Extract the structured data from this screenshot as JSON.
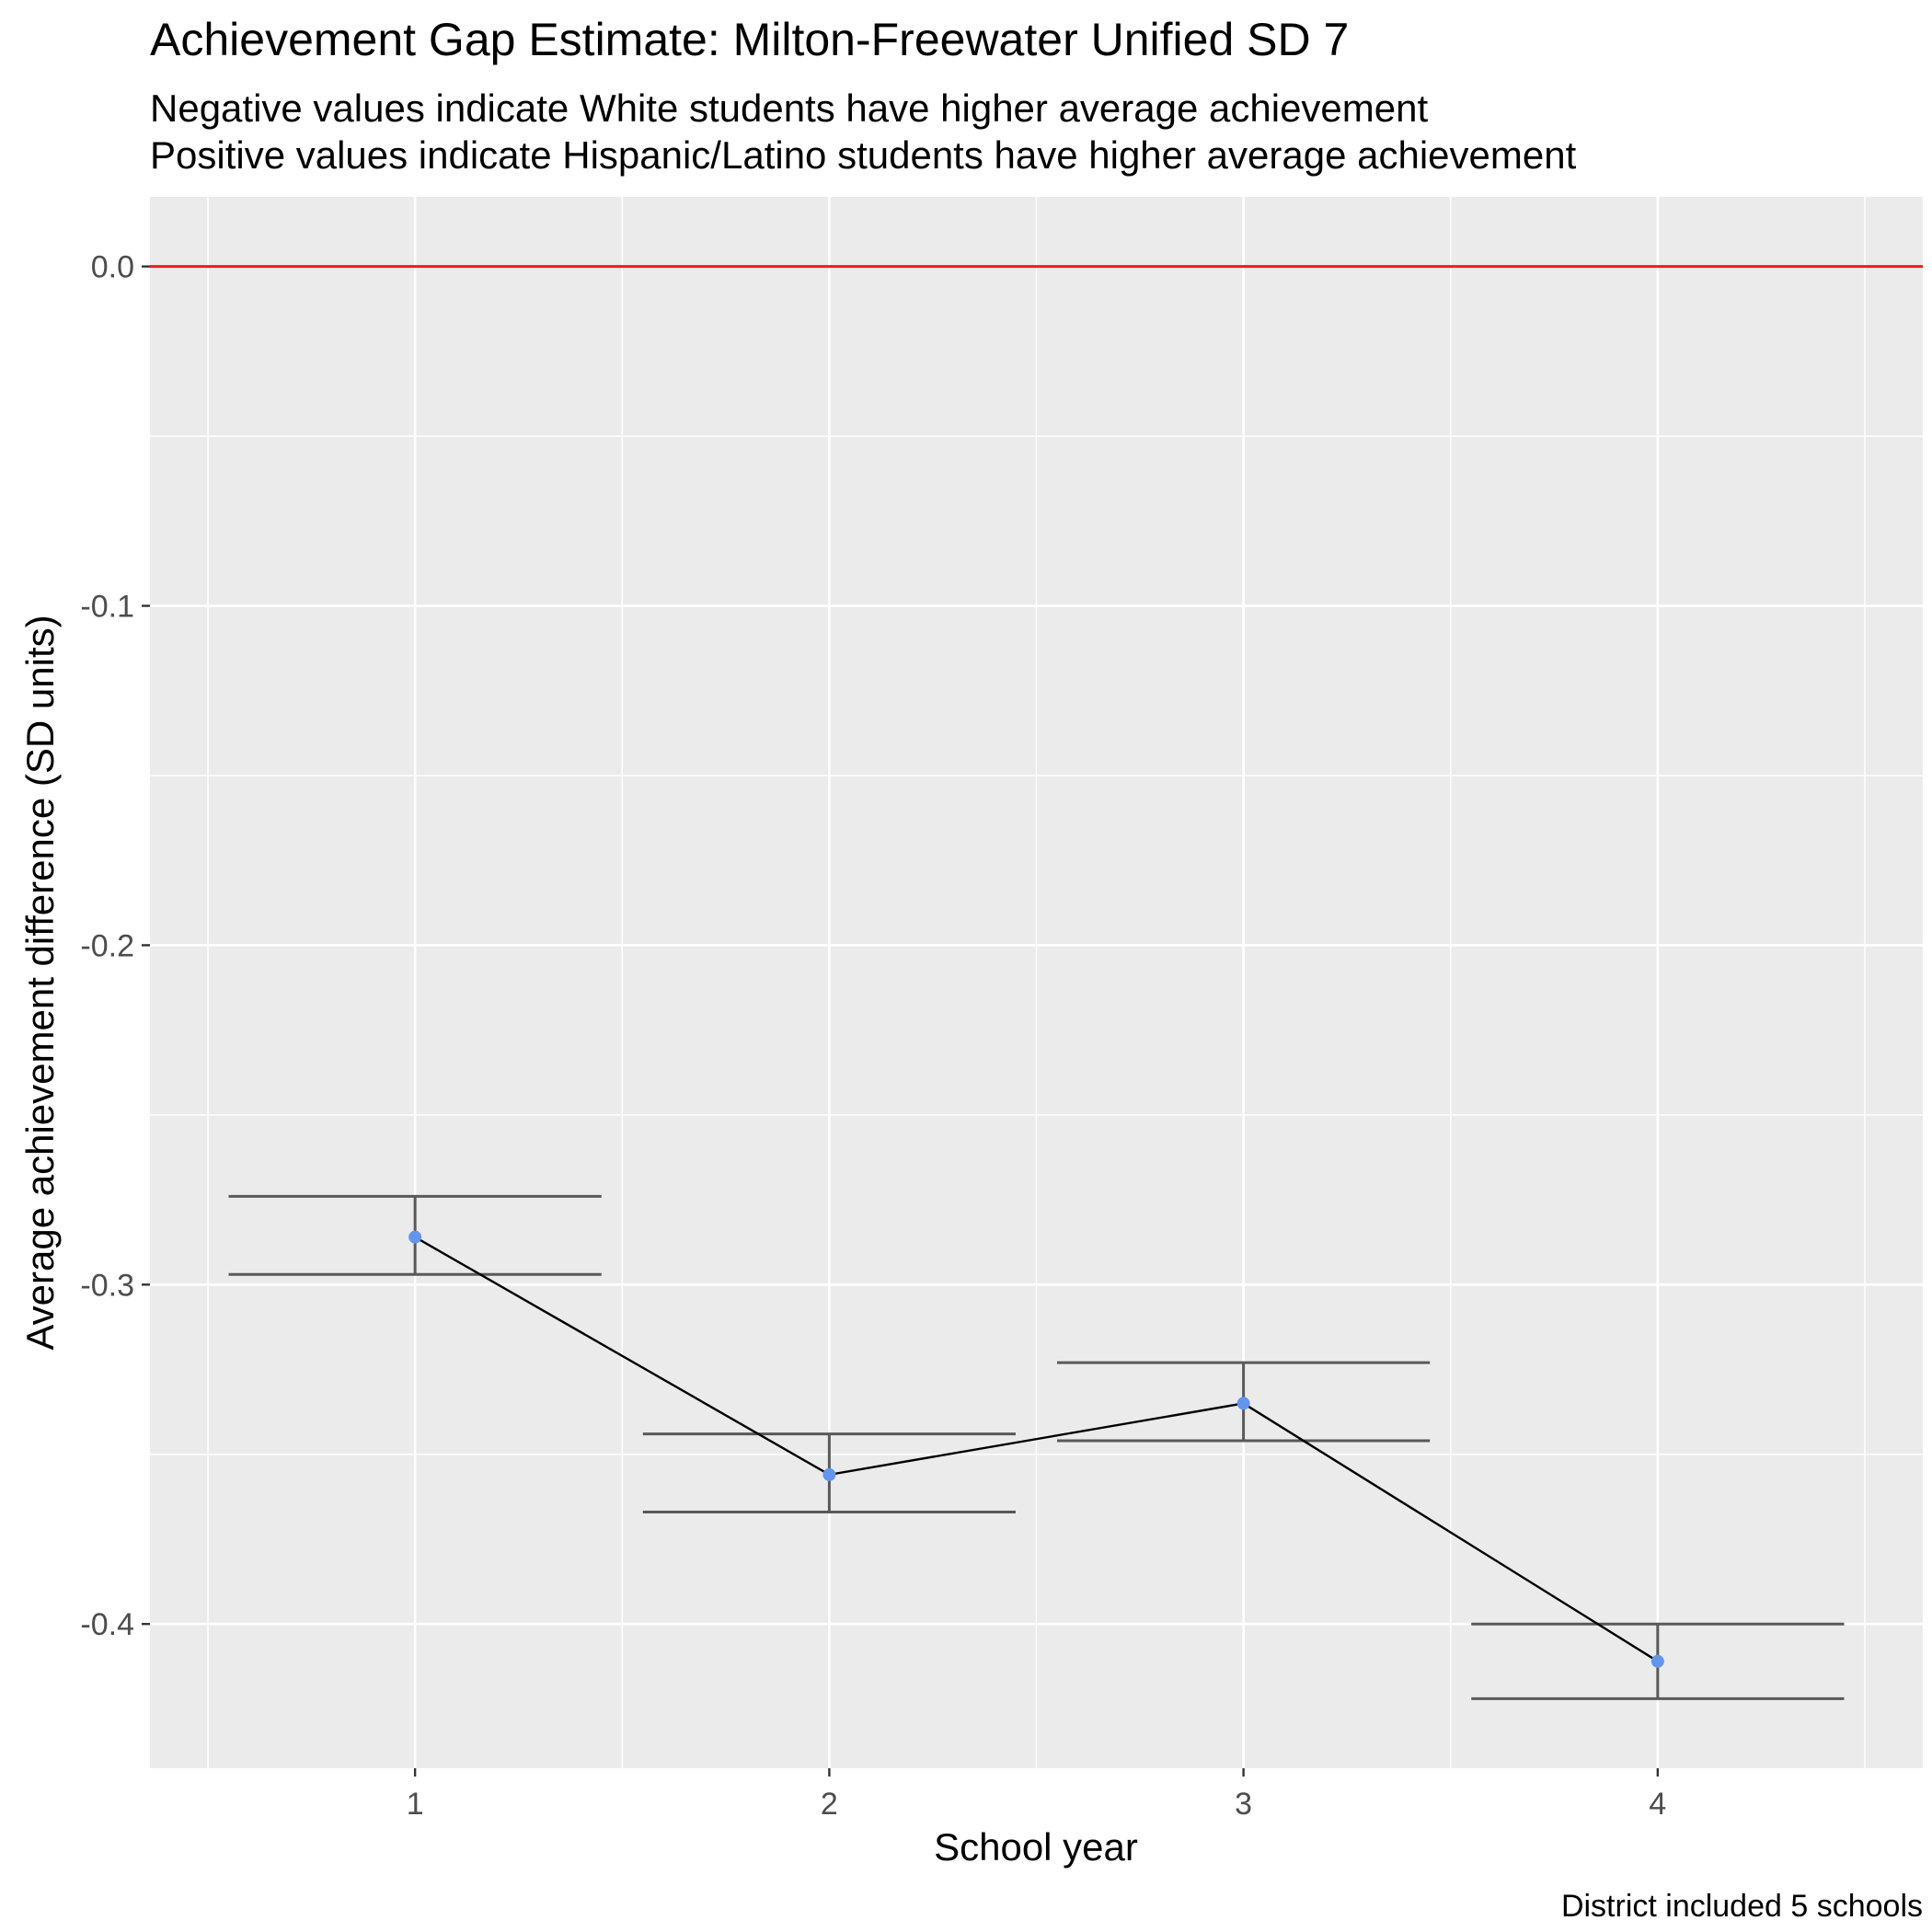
{
  "chart_data": {
    "type": "line",
    "title": "Achievement Gap Estimate: Milton-Freewater Unified SD 7",
    "subtitle_lines": [
      "Negative values indicate White students have higher average achievement",
      "Positive values indicate Hispanic/Latino students have higher average achievement"
    ],
    "xlabel": "School year",
    "ylabel": "Average achievement difference (SD units)",
    "caption": "District included 5 schools",
    "x": [
      1,
      2,
      3,
      4
    ],
    "x_tick_labels": [
      "1",
      "2",
      "3",
      "4"
    ],
    "series": [
      {
        "values": [
          -0.286,
          -0.356,
          -0.335,
          -0.411
        ],
        "error_lower": [
          -0.297,
          -0.367,
          -0.346,
          -0.422
        ],
        "error_upper": [
          -0.274,
          -0.344,
          -0.323,
          -0.4
        ]
      }
    ],
    "y_ticks": [
      0.0,
      -0.1,
      -0.2,
      -0.3,
      -0.4
    ],
    "y_tick_labels": [
      "0.0",
      "-0.1",
      "-0.2",
      "-0.3",
      "-0.4"
    ],
    "xlim": [
      0.36,
      4.64
    ],
    "ylim": [
      -0.4425,
      0.0205
    ],
    "reference_line": {
      "y": 0.0,
      "color": "#ee1c1c"
    },
    "point_color": "#6495ed",
    "line_color": "#000000",
    "errorbar_color": "#595959",
    "panel_background": "#ebebeb",
    "grid": true,
    "legend": "none"
  }
}
